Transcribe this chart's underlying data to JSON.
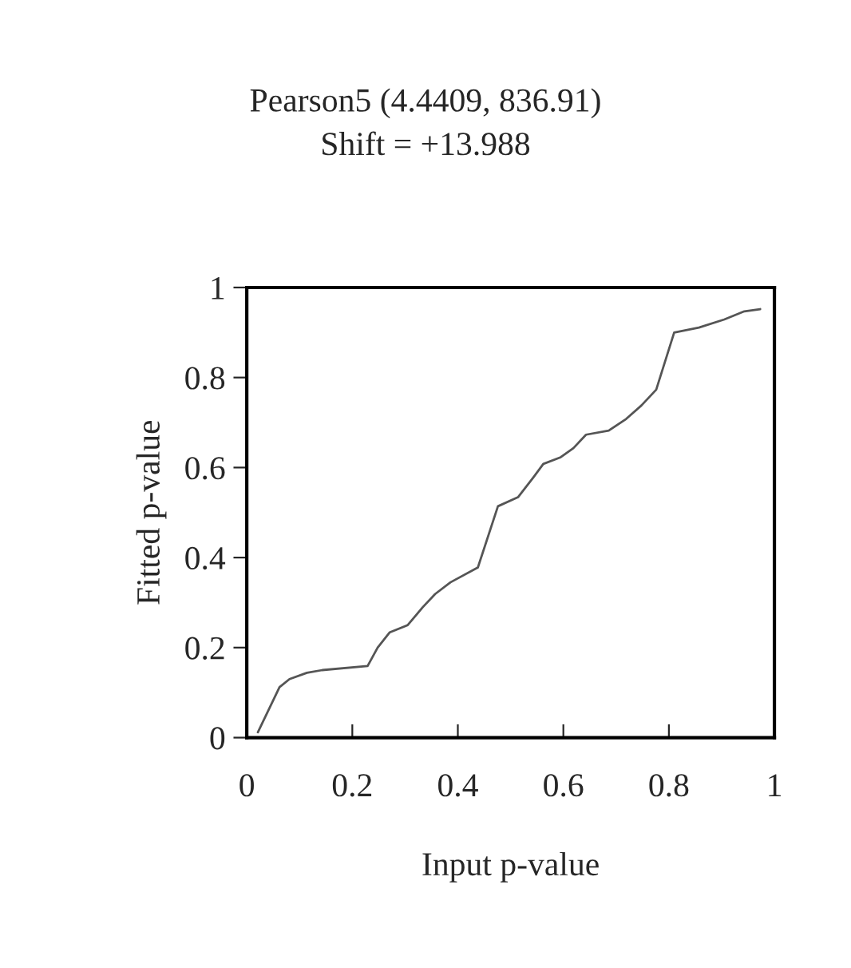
{
  "chart_data": {
    "type": "line",
    "title": "Pearson5 (4.4409, 836.91)",
    "subtitle": "Shift = +13.988",
    "xlabel": "Input p-value",
    "ylabel": "Fitted p-value",
    "x": [
      0.021,
      0.062,
      0.081,
      0.114,
      0.143,
      0.229,
      0.248,
      0.271,
      0.305,
      0.333,
      0.357,
      0.386,
      0.438,
      0.476,
      0.514,
      0.543,
      0.562,
      0.595,
      0.619,
      0.643,
      0.686,
      0.719,
      0.748,
      0.776,
      0.81,
      0.857,
      0.905,
      0.943,
      0.973
    ],
    "series": [
      {
        "color": "#555555",
        "values": [
          0.012,
          0.112,
          0.13,
          0.144,
          0.15,
          0.159,
          0.2,
          0.234,
          0.25,
          0.289,
          0.319,
          0.345,
          0.378,
          0.514,
          0.534,
          0.578,
          0.608,
          0.623,
          0.643,
          0.673,
          0.682,
          0.708,
          0.738,
          0.773,
          0.9,
          0.911,
          0.929,
          0.947,
          0.952
        ]
      }
    ],
    "xlim": [
      0,
      1
    ],
    "ylim": [
      0,
      1
    ],
    "xticks": [
      0,
      0.2,
      0.4,
      0.6,
      0.8,
      1
    ],
    "yticks": [
      0,
      0.2,
      0.4,
      0.6,
      0.8,
      1
    ],
    "grid": false,
    "legend": false,
    "marker": "none",
    "line_style": "solid"
  }
}
